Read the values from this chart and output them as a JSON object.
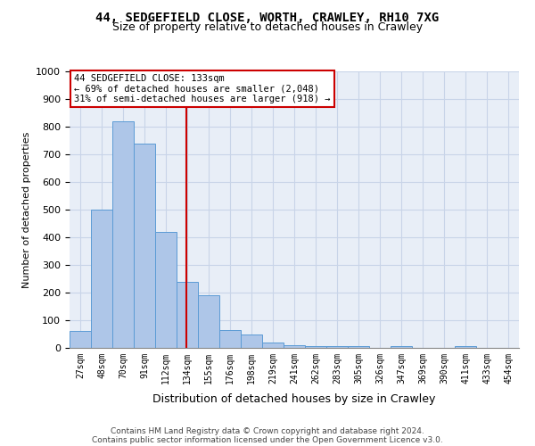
{
  "title1": "44, SEDGEFIELD CLOSE, WORTH, CRAWLEY, RH10 7XG",
  "title2": "Size of property relative to detached houses in Crawley",
  "xlabel": "Distribution of detached houses by size in Crawley",
  "ylabel": "Number of detached properties",
  "categories": [
    "27sqm",
    "48sqm",
    "70sqm",
    "91sqm",
    "112sqm",
    "134sqm",
    "155sqm",
    "176sqm",
    "198sqm",
    "219sqm",
    "241sqm",
    "262sqm",
    "283sqm",
    "305sqm",
    "326sqm",
    "347sqm",
    "369sqm",
    "390sqm",
    "411sqm",
    "433sqm",
    "454sqm"
  ],
  "values": [
    60,
    500,
    820,
    740,
    420,
    240,
    190,
    65,
    47,
    20,
    10,
    5,
    5,
    5,
    0,
    5,
    0,
    0,
    5,
    0,
    0
  ],
  "bar_color": "#aec6e8",
  "bar_edge_color": "#5b9bd5",
  "grid_color": "#c8d4e8",
  "bg_color": "#e8eef7",
  "annotation_box_color": "#cc0000",
  "annotation_text": "44 SEDGEFIELD CLOSE: 133sqm\n← 69% of detached houses are smaller (2,048)\n31% of semi-detached houses are larger (918) →",
  "property_line_color": "#cc0000",
  "ylim": [
    0,
    1000
  ],
  "yticks": [
    0,
    100,
    200,
    300,
    400,
    500,
    600,
    700,
    800,
    900,
    1000
  ],
  "footer1": "Contains HM Land Registry data © Crown copyright and database right 2024.",
  "footer2": "Contains public sector information licensed under the Open Government Licence v3.0."
}
